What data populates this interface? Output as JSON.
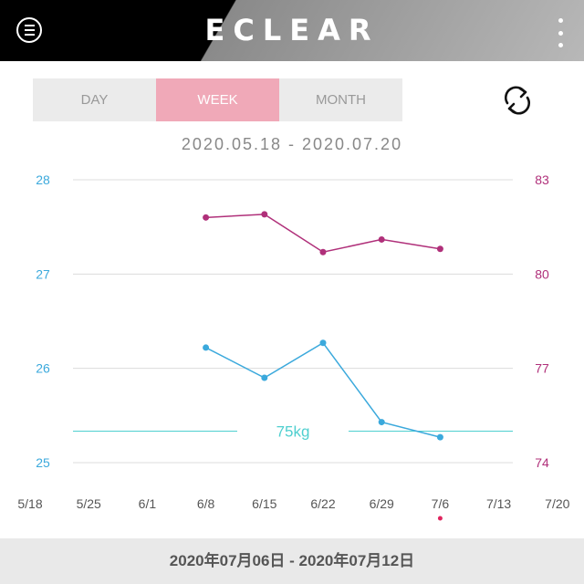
{
  "app": {
    "title": "ECLEAR"
  },
  "tabs": [
    {
      "label": "DAY",
      "active": false
    },
    {
      "label": "WEEK",
      "active": true
    },
    {
      "label": "MONTH",
      "active": false
    }
  ],
  "date_range": "2020.05.18 - 2020.07.20",
  "selected_week": "2020年07月06日 - 2020年07月12日",
  "icons": {
    "menu": "menu-icon",
    "more": "more-vertical-icon",
    "refresh": "refresh-icon"
  },
  "colors": {
    "left_axis": "#3ba9dc",
    "right_axis": "#b0307a",
    "target_line": "#4fcfcf",
    "active_tab": "#f0a9b8",
    "selected_dot": "#e0245e"
  },
  "chart_data": {
    "type": "line",
    "x": [
      "5/18",
      "5/25",
      "6/1",
      "6/8",
      "6/15",
      "6/22",
      "6/29",
      "7/6",
      "7/13",
      "7/20"
    ],
    "left_axis": {
      "ticks": [
        25,
        26,
        27,
        28
      ],
      "ylim": [
        25,
        28
      ]
    },
    "right_axis": {
      "ticks": [
        74,
        77,
        80,
        83
      ],
      "ylim": [
        74,
        83
      ]
    },
    "series": [
      {
        "axis": "right",
        "color": "#b0307a",
        "values": [
          null,
          null,
          null,
          81.8,
          81.9,
          80.7,
          81.1,
          80.8,
          null,
          null
        ]
      },
      {
        "axis": "left",
        "color": "#3ba9dc",
        "values": [
          null,
          null,
          null,
          26.22,
          25.9,
          26.27,
          25.43,
          25.27,
          null,
          null
        ]
      }
    ],
    "target": {
      "label": "75kg",
      "value": 75,
      "axis": "right"
    },
    "selected": "7/6"
  }
}
